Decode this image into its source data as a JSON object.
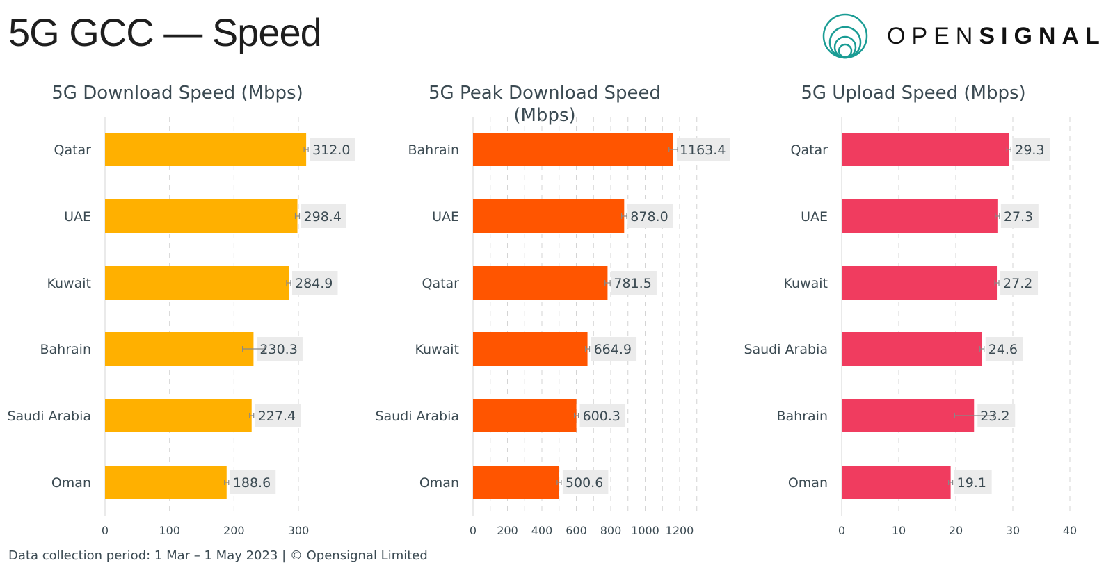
{
  "header": {
    "title": "5G GCC — Speed"
  },
  "logo": {
    "text_light": "OPEN",
    "text_bold": "SIGNAL",
    "color": "#1a9c94"
  },
  "footer": {
    "text": "Data collection period: 1 Mar – 1 May 2023 |  © Opensignal Limited"
  },
  "chart_data": [
    {
      "type": "bar",
      "title": "5G Download Speed (Mbps)",
      "color": "#ffb000",
      "categories": [
        "Qatar",
        "UAE",
        "Kuwait",
        "Bahrain",
        "Saudi Arabia",
        "Oman"
      ],
      "values": [
        312.0,
        298.4,
        284.9,
        230.3,
        227.4,
        188.6
      ],
      "labels": [
        "312.0",
        "298.4",
        "284.9",
        "230.3",
        "227.4",
        "188.6"
      ],
      "ci": [
        2,
        3,
        3,
        17,
        1,
        1.5
      ],
      "xticks": [
        0,
        100,
        200,
        300
      ],
      "tick_labels": [
        "0",
        "100",
        "200",
        "300"
      ],
      "grid_step": 100,
      "xlim": [
        0,
        350
      ]
    },
    {
      "type": "bar",
      "title": "5G Peak Download Speed (Mbps)",
      "title_lines": [
        "5G Peak Download Speed",
        "(Mbps)"
      ],
      "color": "#ff5500",
      "categories": [
        "Bahrain",
        "UAE",
        "Qatar",
        "Kuwait",
        "Saudi Arabia",
        "Oman"
      ],
      "values": [
        1163.4,
        878.0,
        781.5,
        664.9,
        600.3,
        500.6
      ],
      "labels": [
        "1163.4",
        "878.0",
        "781.5",
        "664.9",
        "600.3",
        "500.6"
      ],
      "ci": [
        25,
        15,
        15,
        10,
        5,
        5
      ],
      "xticks": [
        0,
        200,
        400,
        600,
        800,
        1000,
        1200
      ],
      "tick_labels": [
        "0",
        "200",
        "400",
        "600",
        "800",
        "1000",
        "1200"
      ],
      "grid_step": 100,
      "xlim": [
        0,
        1300
      ]
    },
    {
      "type": "bar",
      "title": "5G Upload Speed (Mbps)",
      "color": "#f03c5f",
      "categories": [
        "Qatar",
        "UAE",
        "Kuwait",
        "Saudi Arabia",
        "Bahrain",
        "Oman"
      ],
      "values": [
        29.3,
        27.3,
        27.2,
        24.6,
        23.2,
        19.1
      ],
      "labels": [
        "29.3",
        "27.3",
        "27.2",
        "24.6",
        "23.2",
        "19.1"
      ],
      "ci": [
        0.3,
        0.3,
        0.3,
        0.2,
        3.4,
        0.2
      ],
      "xticks": [
        0,
        10,
        20,
        30,
        40
      ],
      "tick_labels": [
        "0",
        "10",
        "20",
        "30",
        "40"
      ],
      "grid_step": 10,
      "xlim": [
        0,
        40
      ]
    }
  ]
}
